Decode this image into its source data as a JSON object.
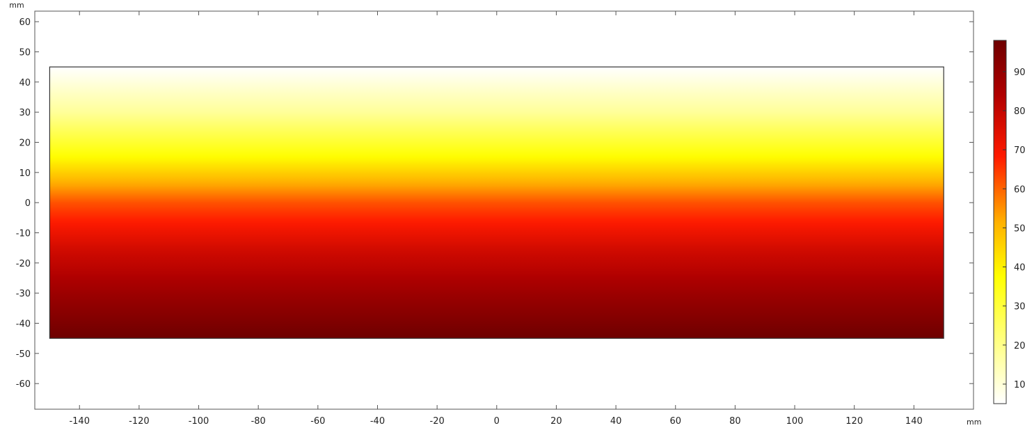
{
  "chart_data": {
    "type": "heatmap",
    "title": "",
    "x_unit_label": "mm",
    "y_unit_label": "mm",
    "xlim": [
      -155,
      160
    ],
    "ylim": [
      -68.5,
      63.5
    ],
    "x_ticks": [
      -140,
      -120,
      -100,
      -80,
      -60,
      -40,
      -20,
      0,
      20,
      40,
      60,
      80,
      100,
      120,
      140
    ],
    "y_ticks": [
      -60,
      -50,
      -40,
      -30,
      -20,
      -10,
      0,
      10,
      20,
      30,
      40,
      50,
      60
    ],
    "domain": {
      "x": [
        -150,
        150
      ],
      "y": [
        -45,
        45
      ]
    },
    "field_profile": {
      "description_axis": "y",
      "y_values": [
        -45,
        -30,
        -15,
        0,
        15,
        30,
        45
      ],
      "field_values": [
        98,
        88,
        77,
        62,
        38,
        18,
        5
      ]
    },
    "colorbar": {
      "colormap": "heat",
      "range": [
        5,
        98
      ],
      "ticks": [
        10,
        20,
        30,
        40,
        50,
        60,
        70,
        80,
        90
      ],
      "tick_labels": [
        "10",
        "20",
        "30",
        "40",
        "50",
        "60",
        "70",
        "80",
        "90"
      ],
      "stops": [
        {
          "offset": 0.0,
          "color": "#ffffff"
        },
        {
          "offset": 0.35,
          "color": "#ffff00"
        },
        {
          "offset": 0.5,
          "color": "#ffb000"
        },
        {
          "offset": 0.68,
          "color": "#ff1a00"
        },
        {
          "offset": 0.85,
          "color": "#b00000"
        },
        {
          "offset": 1.0,
          "color": "#6e0000"
        }
      ]
    },
    "grid": false
  }
}
